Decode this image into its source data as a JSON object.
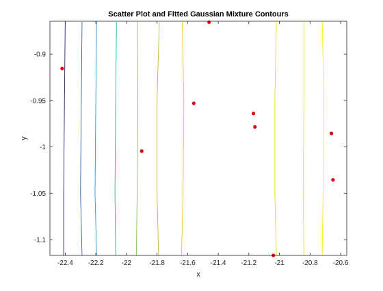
{
  "chart_data": {
    "type": "scatter",
    "title": "Scatter Plot and Fitted Gaussian Mixture Contours",
    "xlabel": "x",
    "ylabel": "y",
    "xlim": [
      -22.5,
      -20.56
    ],
    "ylim": [
      -1.117,
      -0.8645
    ],
    "xticks": [
      -22.4,
      -22.2,
      -22,
      -21.8,
      -21.6,
      -21.4,
      -21.2,
      -21,
      -20.8,
      -20.6
    ],
    "xtick_labels": [
      "-22.4",
      "-22.2",
      "-22",
      "-21.8",
      "-21.6",
      "-21.4",
      "-21.2",
      "-21",
      "-20.8",
      "-20.6"
    ],
    "yticks": [
      -0.9,
      -0.95,
      -1,
      -1.05,
      -1.1
    ],
    "ytick_labels": [
      "-0.9",
      "-0.95",
      "-1",
      "-1.05",
      "-1.1"
    ],
    "grid": false,
    "box": true,
    "points": {
      "color": "#e60000",
      "x": [
        -22.42,
        -21.9,
        -21.56,
        -21.46,
        -21.17,
        -21.16,
        -21.04,
        -20.66,
        -20.65
      ],
      "y": [
        -0.9155,
        -1.0045,
        -0.953,
        -0.8655,
        -0.964,
        -0.9785,
        -1.117,
        -0.9855,
        -1.0355
      ]
    },
    "contours": [
      {
        "color": "#1d1e73",
        "points": [
          [
            -22.4,
            -0.865
          ],
          [
            -22.405,
            -0.95
          ],
          [
            -22.41,
            -1.05
          ],
          [
            -22.41,
            -1.117
          ]
        ]
      },
      {
        "color": "#2a5fb6",
        "points": [
          [
            -22.29,
            -0.865
          ],
          [
            -22.295,
            -0.95
          ],
          [
            -22.3,
            -1.05
          ],
          [
            -22.29,
            -1.117
          ]
        ]
      },
      {
        "color": "#2f93d2",
        "points": [
          [
            -22.195,
            -0.865
          ],
          [
            -22.2,
            -0.95
          ],
          [
            -22.205,
            -1.05
          ],
          [
            -22.195,
            -1.117
          ]
        ]
      },
      {
        "color": "#17b6a3",
        "points": [
          [
            -22.065,
            -0.865
          ],
          [
            -22.07,
            -0.95
          ],
          [
            -22.075,
            -1.05
          ],
          [
            -22.07,
            -1.117
          ]
        ]
      },
      {
        "color": "#7cc63e",
        "points": [
          [
            -21.93,
            -0.865
          ],
          [
            -21.925,
            -0.95
          ],
          [
            -21.93,
            -1.05
          ],
          [
            -21.935,
            -1.117
          ]
        ]
      },
      {
        "color": "#c2b92d",
        "points": [
          [
            -21.785,
            -0.865
          ],
          [
            -21.8,
            -0.95
          ],
          [
            -21.8,
            -1.05
          ],
          [
            -21.79,
            -1.117
          ]
        ]
      },
      {
        "color": "#eec72d",
        "points": [
          [
            -21.635,
            -0.865
          ],
          [
            -21.625,
            -0.95
          ],
          [
            -21.63,
            -1.05
          ],
          [
            -21.64,
            -1.117
          ]
        ]
      },
      {
        "color": "#f5d41e",
        "points": [
          [
            -21.02,
            -0.865
          ],
          [
            -21.03,
            -0.95
          ],
          [
            -21.03,
            -1.05
          ],
          [
            -21.02,
            -1.117
          ]
        ]
      },
      {
        "color": "#f1dd23",
        "points": [
          [
            -20.84,
            -0.865
          ],
          [
            -20.84,
            -0.95
          ],
          [
            -20.845,
            -1.05
          ],
          [
            -20.84,
            -1.117
          ]
        ]
      },
      {
        "color": "#f7e81c",
        "points": [
          [
            -20.72,
            -0.865
          ],
          [
            -20.71,
            -0.95
          ],
          [
            -20.715,
            -1.05
          ],
          [
            -20.72,
            -1.117
          ]
        ]
      }
    ]
  }
}
